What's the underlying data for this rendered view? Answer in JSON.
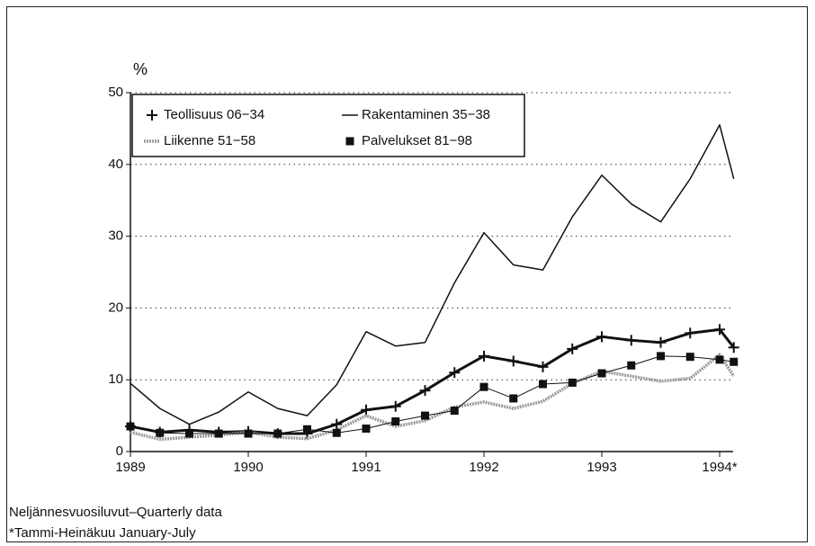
{
  "chart_data": {
    "type": "line",
    "y_axis_label": "%",
    "x": [
      1989,
      1989.25,
      1989.5,
      1989.75,
      1990,
      1990.25,
      1990.5,
      1990.75,
      1991,
      1991.25,
      1991.5,
      1991.75,
      1992,
      1992.25,
      1992.5,
      1992.75,
      1993,
      1993.25,
      1993.5,
      1993.75,
      1994,
      1994.12
    ],
    "series": [
      {
        "name": "Teollisuus 06−34",
        "color": "#111111",
        "marker": "plus",
        "values": [
          3.5,
          2.7,
          3.0,
          2.7,
          2.8,
          2.5,
          2.5,
          3.8,
          5.8,
          6.3,
          8.5,
          11,
          13.3,
          12.6,
          11.8,
          14.3,
          16,
          15.5,
          15.2,
          16.5,
          17,
          14.5
        ]
      },
      {
        "name": "Rakentaminen 35−38",
        "color": "#111111",
        "marker": "none",
        "values": [
          9.5,
          6,
          3.8,
          5.5,
          8.3,
          6,
          5,
          9.3,
          16.7,
          14.7,
          15.2,
          23.5,
          30.5,
          26,
          25.3,
          32.7,
          38.5,
          34.5,
          32,
          38,
          45.5,
          38
        ]
      },
      {
        "name": "Liikenne 51−58",
        "color": "#9a9a9a",
        "marker": "none",
        "values": [
          2.7,
          1.7,
          2.0,
          2.3,
          2.7,
          2.0,
          1.8,
          3.0,
          5.0,
          3.5,
          4.3,
          6.2,
          6.9,
          6.0,
          7.0,
          9.5,
          11.2,
          10.5,
          9.8,
          10.2,
          13.5,
          10.5
        ]
      },
      {
        "name": "Palvelukset 81−98",
        "color": "#111111",
        "marker": "square",
        "values": [
          3.5,
          2.6,
          2.5,
          2.5,
          2.5,
          2.5,
          3.1,
          2.6,
          3.2,
          4.2,
          5.0,
          5.7,
          9.0,
          7.4,
          9.4,
          9.6,
          10.9,
          12,
          13.3,
          13.2,
          12.8,
          12.5
        ]
      }
    ],
    "xlim": [
      1989,
      1994.12
    ],
    "xticks": [
      1989,
      1990,
      1991,
      1992,
      1993,
      {
        "value": 1994,
        "label": "1994*"
      }
    ],
    "ylim": [
      0,
      50
    ],
    "yticks": [
      0,
      10,
      20,
      30,
      40,
      50
    ],
    "grid": true,
    "legend": "upper left",
    "footnotes": [
      "Neljännesvuosiluvut–Quarterly data",
      "*Tammi-Heinäkuu January-July"
    ]
  }
}
